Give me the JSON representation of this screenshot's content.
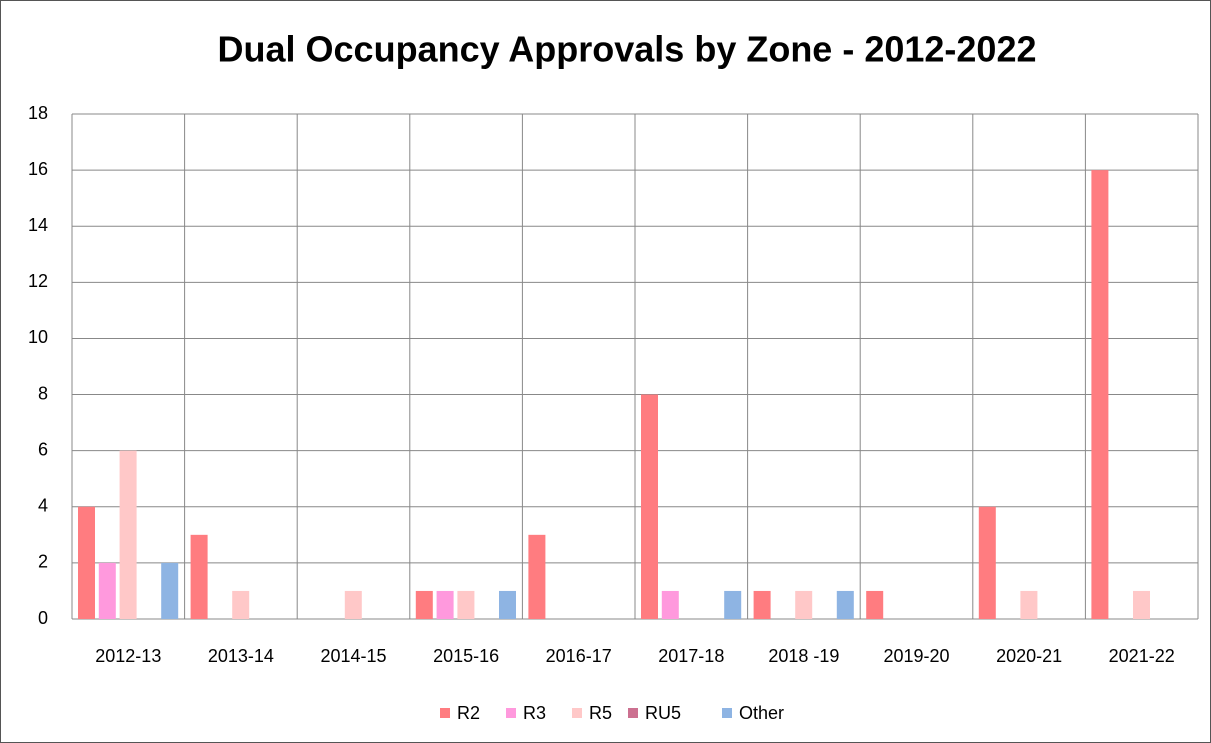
{
  "chart_data": {
    "type": "bar",
    "title": "Dual Occupancy Approvals by Zone - 2012-2022",
    "categories": [
      "2012-13",
      "2013-14",
      "2014-15",
      "2015-16",
      "2016-17",
      "2017-18",
      "2018 -19",
      "2019-20",
      "2020-21",
      "2021-22"
    ],
    "series": [
      {
        "name": "R2",
        "color": "#ff7c80",
        "values": [
          4,
          3,
          0,
          1,
          3,
          8,
          1,
          1,
          4,
          16
        ]
      },
      {
        "name": "R3",
        "color": "#ff99dd",
        "values": [
          2,
          0,
          0,
          1,
          0,
          1,
          0,
          0,
          0,
          0
        ]
      },
      {
        "name": "R5",
        "color": "#ffc8c8",
        "values": [
          6,
          1,
          1,
          1,
          0,
          0,
          1,
          0,
          1,
          1
        ]
      },
      {
        "name": "RU5",
        "color": "#cc7090",
        "values": [
          0,
          0,
          0,
          0,
          0,
          0,
          0,
          0,
          0,
          0
        ]
      },
      {
        "name": "Other",
        "color": "#8eb4e3",
        "values": [
          2,
          0,
          0,
          1,
          0,
          1,
          1,
          0,
          0,
          0
        ]
      }
    ],
    "ylim": [
      0,
      18
    ],
    "yticks": [
      0,
      2,
      4,
      6,
      8,
      10,
      12,
      14,
      16,
      18
    ],
    "grid": true,
    "legend": "bottom"
  }
}
